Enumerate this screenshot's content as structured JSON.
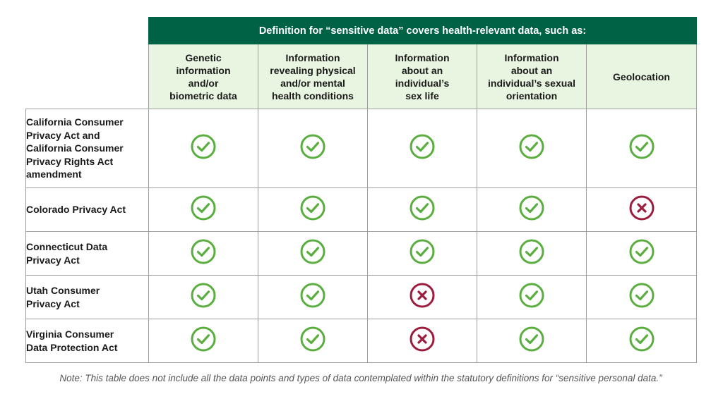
{
  "table": {
    "banner": "Definition for “sensitive data” covers health-relevant data, such as:",
    "columns": [
      "Genetic\ninformation\nand/or\nbiometric data",
      "Information\nrevealing physical\nand/or mental\nhealth conditions",
      "Information\nabout an\nindividual’s\nsex life",
      "Information\nabout an\nindividual’s sexual\norientation",
      "Geolocation"
    ],
    "rows": [
      {
        "label": "California Consumer\nPrivacy Act and\nCalifornia Consumer\nPrivacy Rights Act\namendment",
        "values": [
          "yes",
          "yes",
          "yes",
          "yes",
          "yes"
        ]
      },
      {
        "label": "Colorado Privacy Act",
        "values": [
          "yes",
          "yes",
          "yes",
          "yes",
          "no"
        ]
      },
      {
        "label": "Connecticut Data\nPrivacy Act",
        "values": [
          "yes",
          "yes",
          "yes",
          "yes",
          "yes"
        ]
      },
      {
        "label": "Utah Consumer\nPrivacy Act",
        "values": [
          "yes",
          "yes",
          "no",
          "yes",
          "yes"
        ]
      },
      {
        "label": "Virginia Consumer\nData Protection Act",
        "values": [
          "yes",
          "yes",
          "no",
          "yes",
          "yes"
        ]
      }
    ]
  },
  "icons": {
    "yes": "check-circle-icon",
    "no": "x-circle-icon"
  },
  "colors": {
    "banner_bg": "#006245",
    "header_bg": "#e8f5e0",
    "check": "#5aad3f",
    "cross": "#9b1c3c"
  },
  "note": "Note: This table does not include all the data points and types of data contemplated within the statutory definitions for “sensitive personal data.”"
}
